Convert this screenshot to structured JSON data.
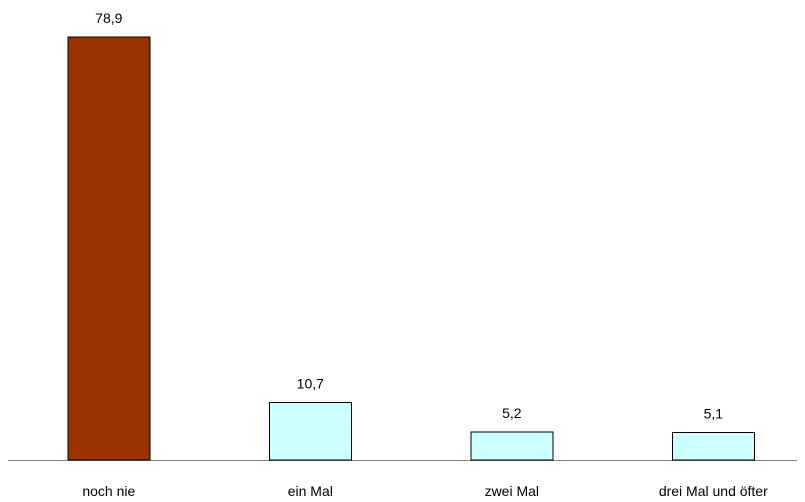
{
  "chart_data": {
    "type": "bar",
    "title": "",
    "xlabel": "",
    "ylabel": "",
    "categories": [
      "noch nie",
      "ein Mal",
      "zwei Mal",
      "drei Mal und öfter"
    ],
    "values": [
      78.9,
      10.7,
      5.2,
      5.1
    ],
    "value_labels": [
      "78,9",
      "10,7",
      "5,2",
      "5,1"
    ],
    "ylim": [
      0,
      78.9
    ],
    "grid": false,
    "legend": "none",
    "colors": [
      "#993300",
      "#CCFFFF",
      "#CCFFFF",
      "#CCFFFF"
    ]
  }
}
